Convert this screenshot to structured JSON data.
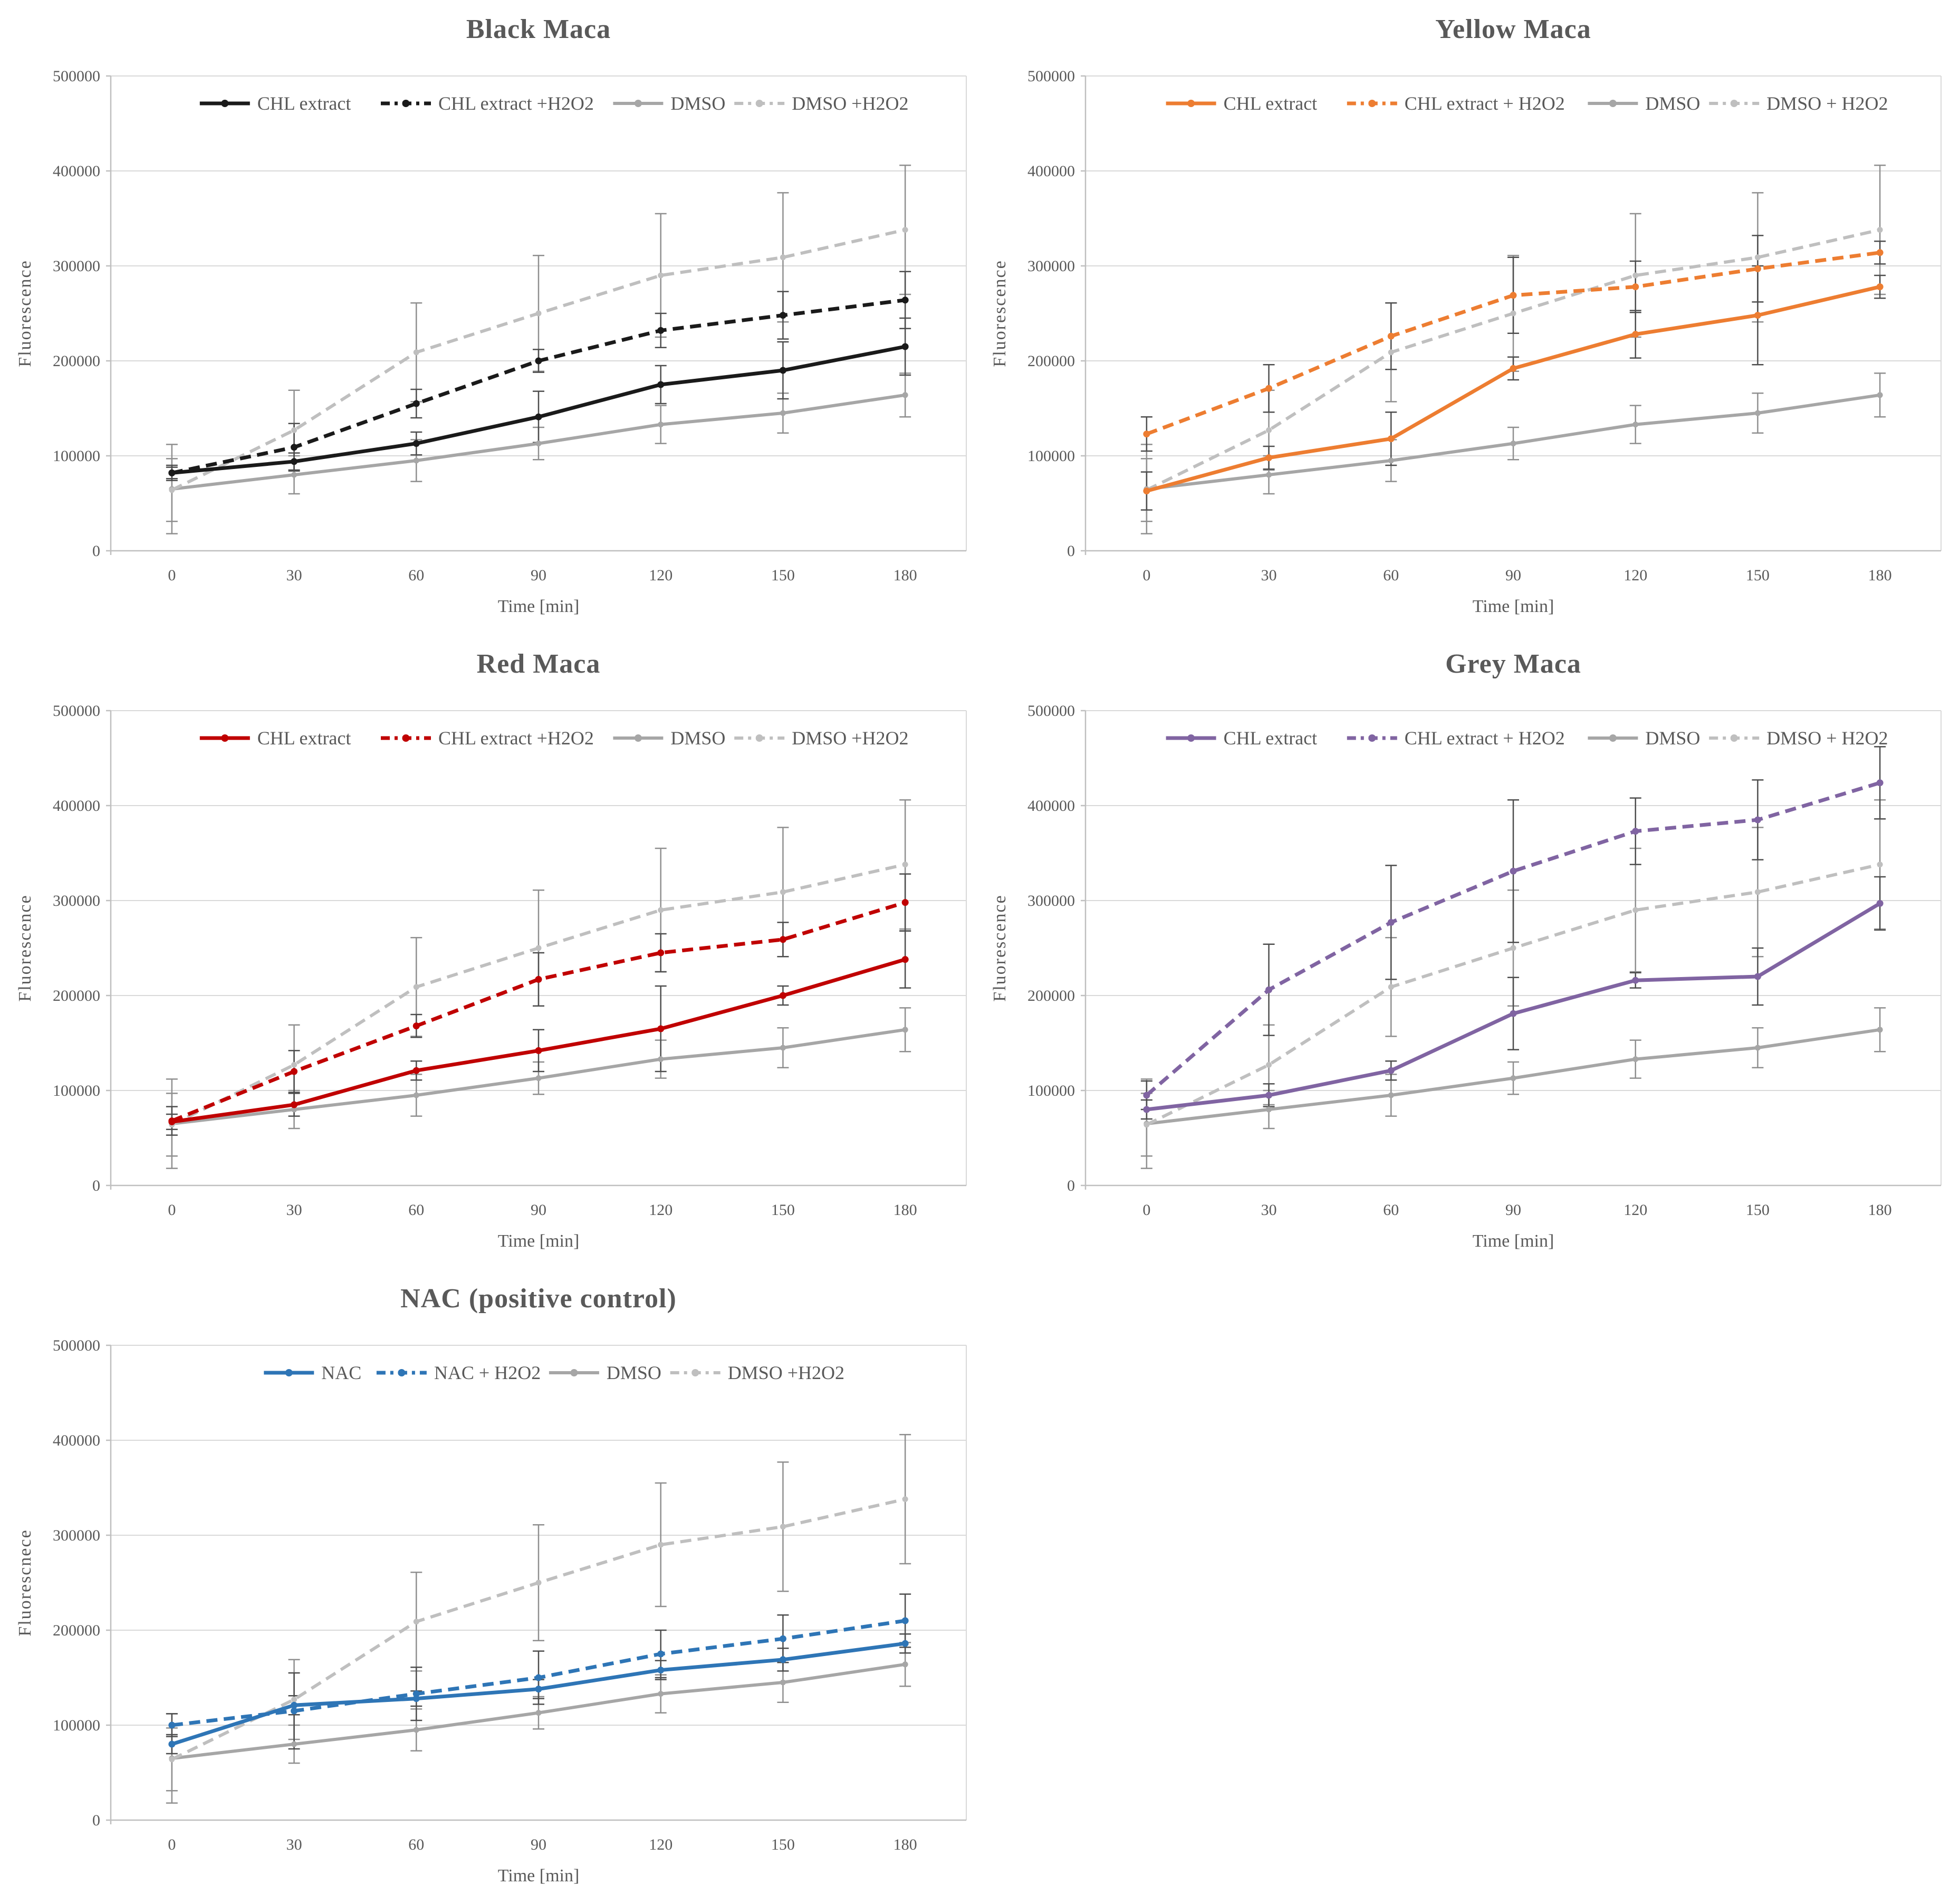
{
  "page": {
    "background": "#ffffff"
  },
  "styles": {
    "title_color": "#595959",
    "tick_color": "#595959",
    "legend_text_color": "#595959",
    "gridline_color": "#d9d9d9",
    "axis_color": "#bfbfbf",
    "error_bar_dark": "#4d4d4d",
    "error_bar_grey": "#8f8f8f"
  },
  "chart_data": [
    {
      "type": "line",
      "title": "Black Maca",
      "xlabel": "Time [min]",
      "ylabel": "Fluorescence",
      "x": [
        0,
        30,
        60,
        90,
        120,
        150,
        180
      ],
      "ylim": [
        0,
        500000
      ],
      "yticks": [
        0,
        100000,
        200000,
        300000,
        400000,
        500000
      ],
      "grid": true,
      "legend_position": "top",
      "series": [
        {
          "name": "CHL extract",
          "color": "#1a1a1a",
          "style": "solid",
          "values": [
            82000,
            94000,
            113000,
            141000,
            175000,
            190000,
            215000
          ],
          "errors": [
            6000,
            9000,
            12000,
            27000,
            20000,
            30000,
            30000
          ]
        },
        {
          "name": "CHL extract +H2O2",
          "color": "#1a1a1a",
          "style": "dashed",
          "values": [
            82000,
            109000,
            155000,
            200000,
            232000,
            248000,
            264000
          ],
          "errors": [
            8000,
            25000,
            15000,
            12000,
            18000,
            25000,
            30000
          ]
        },
        {
          "name": "DMSO",
          "color": "#a6a6a6",
          "style": "solid",
          "values": [
            65000,
            80000,
            95000,
            113000,
            133000,
            145000,
            164000
          ],
          "errors": [
            47000,
            20000,
            22000,
            17000,
            20000,
            21000,
            23000
          ]
        },
        {
          "name": "DMSO +H2O2",
          "color": "#bfbfbf",
          "style": "dashed",
          "values": [
            64000,
            127000,
            209000,
            250000,
            290000,
            309000,
            338000
          ],
          "errors": [
            33000,
            42000,
            52000,
            61000,
            65000,
            68000,
            68000
          ]
        }
      ]
    },
    {
      "type": "line",
      "title": "Yellow Maca",
      "xlabel": "Time [min]",
      "ylabel": "Fluorescence",
      "x": [
        0,
        30,
        60,
        90,
        120,
        150,
        180
      ],
      "ylim": [
        0,
        500000
      ],
      "yticks": [
        0,
        100000,
        200000,
        300000,
        400000,
        500000
      ],
      "grid": true,
      "legend_position": "top",
      "series": [
        {
          "name": "CHL extract",
          "color": "#ed7d31",
          "style": "solid",
          "values": [
            63000,
            98000,
            118000,
            192000,
            228000,
            248000,
            278000
          ],
          "errors": [
            20000,
            12000,
            28000,
            12000,
            25000,
            52000,
            12000
          ]
        },
        {
          "name": "CHL extract + H2O2",
          "color": "#ed7d31",
          "style": "dashed",
          "values": [
            123000,
            171000,
            226000,
            269000,
            278000,
            297000,
            314000
          ],
          "errors": [
            18000,
            25000,
            35000,
            40000,
            27000,
            35000,
            12000
          ]
        },
        {
          "name": "DMSO",
          "color": "#a6a6a6",
          "style": "solid",
          "values": [
            65000,
            80000,
            95000,
            113000,
            133000,
            145000,
            164000
          ],
          "errors": [
            47000,
            20000,
            22000,
            17000,
            20000,
            21000,
            23000
          ]
        },
        {
          "name": "DMSO + H2O2",
          "color": "#bfbfbf",
          "style": "dashed",
          "values": [
            64000,
            127000,
            209000,
            250000,
            290000,
            309000,
            338000
          ],
          "errors": [
            33000,
            42000,
            52000,
            61000,
            65000,
            68000,
            68000
          ]
        }
      ]
    },
    {
      "type": "line",
      "title": "Red Maca",
      "xlabel": "Time [min]",
      "ylabel": "Fluorescence",
      "x": [
        0,
        30,
        60,
        90,
        120,
        150,
        180
      ],
      "ylim": [
        0,
        500000
      ],
      "yticks": [
        0,
        100000,
        200000,
        300000,
        400000,
        500000
      ],
      "grid": true,
      "legend_position": "top",
      "series": [
        {
          "name": "CHL extract",
          "color": "#c00000",
          "style": "solid",
          "values": [
            67000,
            85000,
            121000,
            142000,
            165000,
            200000,
            238000
          ],
          "errors": [
            8000,
            12000,
            10000,
            22000,
            45000,
            10000,
            30000
          ]
        },
        {
          "name": "CHL extract +H2O2",
          "color": "#c00000",
          "style": "dashed",
          "values": [
            68000,
            120000,
            168000,
            217000,
            245000,
            259000,
            298000
          ],
          "errors": [
            15000,
            22000,
            12000,
            28000,
            20000,
            18000,
            30000
          ]
        },
        {
          "name": "DMSO",
          "color": "#a6a6a6",
          "style": "solid",
          "values": [
            65000,
            80000,
            95000,
            113000,
            133000,
            145000,
            164000
          ],
          "errors": [
            47000,
            20000,
            22000,
            17000,
            20000,
            21000,
            23000
          ]
        },
        {
          "name": "DMSO +H2O2",
          "color": "#bfbfbf",
          "style": "dashed",
          "values": [
            64000,
            127000,
            209000,
            250000,
            290000,
            309000,
            338000
          ],
          "errors": [
            33000,
            42000,
            52000,
            61000,
            65000,
            68000,
            68000
          ]
        }
      ]
    },
    {
      "type": "line",
      "title": "Grey Maca",
      "xlabel": "Time [min]",
      "ylabel": "Fluorescence",
      "x": [
        0,
        30,
        60,
        90,
        120,
        150,
        180
      ],
      "ylim": [
        0,
        500000
      ],
      "yticks": [
        0,
        100000,
        200000,
        300000,
        400000,
        500000
      ],
      "grid": true,
      "legend_position": "top",
      "series": [
        {
          "name": "CHL extract",
          "color": "#8064a2",
          "style": "solid",
          "values": [
            80000,
            95000,
            121000,
            181000,
            216000,
            220000,
            297000
          ],
          "errors": [
            10000,
            12000,
            10000,
            38000,
            8000,
            30000,
            28000
          ]
        },
        {
          "name": "CHL extract + H2O2",
          "color": "#8064a2",
          "style": "dashed",
          "values": [
            95000,
            206000,
            277000,
            331000,
            373000,
            385000,
            424000
          ],
          "errors": [
            15000,
            48000,
            60000,
            75000,
            35000,
            42000,
            38000
          ]
        },
        {
          "name": "DMSO",
          "color": "#a6a6a6",
          "style": "solid",
          "values": [
            65000,
            80000,
            95000,
            113000,
            133000,
            145000,
            164000
          ],
          "errors": [
            47000,
            20000,
            22000,
            17000,
            20000,
            21000,
            23000
          ]
        },
        {
          "name": "DMSO + H2O2",
          "color": "#bfbfbf",
          "style": "dashed",
          "values": [
            64000,
            127000,
            209000,
            250000,
            290000,
            309000,
            338000
          ],
          "errors": [
            33000,
            42000,
            52000,
            61000,
            65000,
            68000,
            68000
          ]
        }
      ]
    },
    {
      "type": "line",
      "title": "NAC (positive control)",
      "xlabel": "Time [min]",
      "ylabel": "Fluorescnece",
      "x": [
        0,
        30,
        60,
        90,
        120,
        150,
        180
      ],
      "ylim": [
        0,
        500000
      ],
      "yticks": [
        0,
        100000,
        200000,
        300000,
        400000,
        500000
      ],
      "grid": true,
      "legend_position": "top",
      "series": [
        {
          "name": "NAC",
          "color": "#2e75b6",
          "style": "solid",
          "values": [
            80000,
            121000,
            128000,
            138000,
            158000,
            169000,
            186000
          ],
          "errors": [
            10000,
            10000,
            8000,
            10000,
            10000,
            12000,
            10000
          ]
        },
        {
          "name": "NAC + H2O2",
          "color": "#2e75b6",
          "style": "dashed",
          "values": [
            100000,
            115000,
            133000,
            150000,
            175000,
            191000,
            210000
          ],
          "errors": [
            12000,
            40000,
            28000,
            28000,
            25000,
            25000,
            28000
          ]
        },
        {
          "name": "DMSO",
          "color": "#a6a6a6",
          "style": "solid",
          "values": [
            65000,
            80000,
            95000,
            113000,
            133000,
            145000,
            164000
          ],
          "errors": [
            47000,
            20000,
            22000,
            17000,
            20000,
            21000,
            23000
          ]
        },
        {
          "name": "DMSO +H2O2",
          "color": "#bfbfbf",
          "style": "dashed",
          "values": [
            64000,
            127000,
            209000,
            250000,
            290000,
            309000,
            338000
          ],
          "errors": [
            33000,
            42000,
            52000,
            61000,
            65000,
            68000,
            68000
          ]
        }
      ]
    }
  ]
}
